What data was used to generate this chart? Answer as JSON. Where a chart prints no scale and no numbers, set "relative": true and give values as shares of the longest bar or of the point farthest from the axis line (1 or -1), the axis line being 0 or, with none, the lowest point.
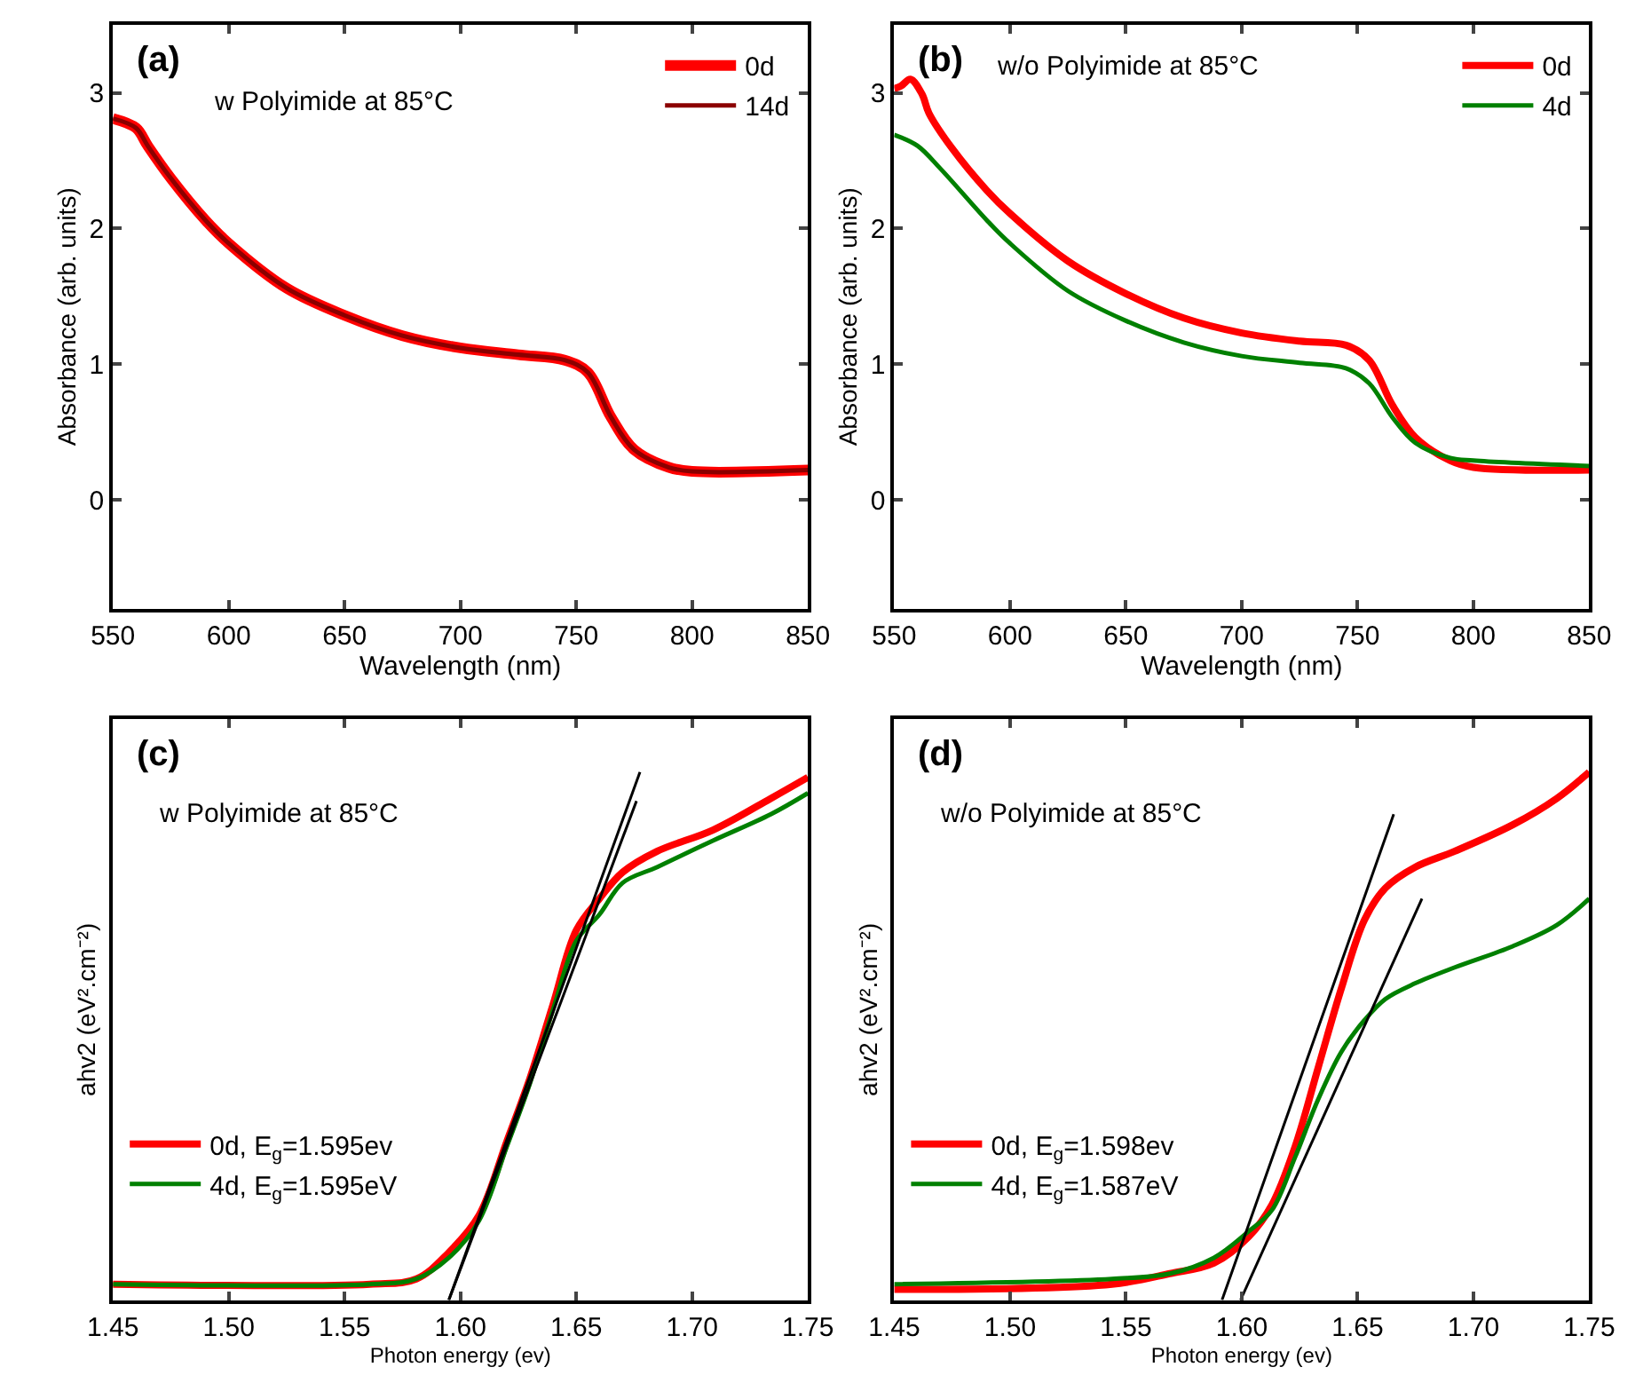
{
  "chart_data": [
    {
      "type": "line",
      "annotations": [
        "(a)",
        "w Polyimide at 85°C"
      ],
      "xlabel": "Wavelength (nm)",
      "ylabel": "Absorbance (arb. units)",
      "legend": "top right",
      "xlim": [
        550,
        850
      ],
      "xticks": [
        550,
        600,
        650,
        700,
        750,
        800,
        850
      ],
      "ylim": [
        -0.8,
        3.5
      ],
      "yticks": [
        0,
        1,
        2,
        3
      ],
      "x": [
        550,
        560,
        565,
        575,
        590,
        600,
        625,
        650,
        675,
        700,
        725,
        745,
        755,
        765,
        775,
        790,
        800,
        850
      ],
      "series": [
        {
          "name": "0d",
          "color": "#ff0000",
          "values": [
            2.81,
            2.74,
            2.61,
            2.37,
            2.06,
            1.89,
            1.56,
            1.36,
            1.21,
            1.12,
            1.07,
            1.03,
            0.94,
            0.61,
            0.37,
            0.24,
            0.21,
            0.22
          ]
        },
        {
          "name": "14d",
          "color": "#8b0000",
          "values": [
            2.81,
            2.74,
            2.61,
            2.37,
            2.06,
            1.89,
            1.56,
            1.36,
            1.21,
            1.12,
            1.07,
            1.03,
            0.94,
            0.61,
            0.37,
            0.24,
            0.21,
            0.22
          ]
        }
      ]
    },
    {
      "type": "line",
      "annotations": [
        "(b)",
        "w/o Polyimide at 85°C"
      ],
      "xlabel": "Wavelength (nm)",
      "ylabel": "Absorbance (arb. units)",
      "legend": "top right",
      "xlim": [
        550,
        850
      ],
      "xticks": [
        550,
        600,
        650,
        700,
        750,
        800,
        850
      ],
      "ylim": [
        -0.8,
        3.5
      ],
      "yticks": [
        0,
        1,
        2,
        3
      ],
      "series": [
        {
          "name": "0d",
          "color": "#ff0000",
          "x": [
            550,
            553,
            557,
            562,
            565,
            575,
            590,
            600,
            625,
            650,
            675,
            700,
            725,
            745,
            755,
            765,
            775,
            790,
            800,
            850
          ],
          "values": [
            3.03,
            3.05,
            3.1,
            2.99,
            2.85,
            2.59,
            2.28,
            2.11,
            1.76,
            1.52,
            1.34,
            1.23,
            1.17,
            1.14,
            1.03,
            0.7,
            0.46,
            0.29,
            0.24,
            0.22
          ]
        },
        {
          "name": "4d",
          "color": "#008000",
          "x": [
            550,
            560,
            570,
            590,
            600,
            625,
            650,
            675,
            700,
            725,
            745,
            755,
            765,
            775,
            790,
            800,
            850
          ],
          "values": [
            2.69,
            2.61,
            2.44,
            2.06,
            1.89,
            1.54,
            1.32,
            1.16,
            1.06,
            1.01,
            0.97,
            0.86,
            0.61,
            0.42,
            0.31,
            0.29,
            0.25
          ]
        }
      ]
    },
    {
      "type": "line",
      "annotations": [
        "(c)",
        "w Polyimide at 85°C"
      ],
      "xlabel": "Photon energy (ev)",
      "ylabel": "ahv2 (eV².cm⁻²)",
      "legend": "bottom left",
      "relative": true,
      "tick_labels": "x",
      "xlim": [
        1.45,
        1.75
      ],
      "xticks": [
        {
          "value": 1.45,
          "label": "1.45"
        },
        {
          "value": 1.5,
          "label": "1.50"
        },
        {
          "value": 1.55,
          "label": "1.55"
        },
        {
          "value": 1.6,
          "label": "1.60"
        },
        {
          "value": 1.65,
          "label": "1.65"
        },
        {
          "value": 1.7,
          "label": "1.70"
        },
        {
          "value": 1.75,
          "label": "1.75"
        }
      ],
      "x": [
        1.45,
        1.561,
        1.581,
        1.595,
        1.608,
        1.62,
        1.63,
        1.64,
        1.65,
        1.66,
        1.67,
        1.685,
        1.709,
        1.734,
        1.75
      ],
      "series": [
        {
          "name": "0d, E$_{g}$=1.595ev",
          "color": "#ff0000",
          "values": [
            0.03,
            0.03,
            0.04,
            0.09,
            0.16,
            0.3,
            0.42,
            0.56,
            0.7,
            0.76,
            0.81,
            0.85,
            0.89,
            0.95,
            0.99
          ]
        },
        {
          "name": "4d, E$_{g}$=1.595eV",
          "color": "#008000",
          "values": [
            0.03,
            0.03,
            0.04,
            0.08,
            0.15,
            0.29,
            0.41,
            0.55,
            0.68,
            0.73,
            0.79,
            0.82,
            0.87,
            0.92,
            0.96
          ]
        },
        {
          "color": "#000000",
          "x": [
            1.595,
            1.6775
          ],
          "values": [
            0,
            1.0
          ]
        },
        {
          "color": "#000000",
          "x": [
            1.595,
            1.676
          ],
          "values": [
            0,
            0.945
          ]
        }
      ]
    },
    {
      "type": "line",
      "annotations": [
        "(d)",
        "w/o Polyimide at 85°C"
      ],
      "xlabel": "Photon energy (ev)",
      "ylabel": "ahv2 (eV².cm⁻²)",
      "legend": "bottom left",
      "relative": true,
      "tick_labels": "x",
      "xlim": [
        1.45,
        1.75
      ],
      "xticks": [
        {
          "value": 1.45,
          "label": "1.45"
        },
        {
          "value": 1.5,
          "label": "1.50"
        },
        {
          "value": 1.55,
          "label": "1.55"
        },
        {
          "value": 1.6,
          "label": "1.60"
        },
        {
          "value": 1.65,
          "label": "1.65"
        },
        {
          "value": 1.7,
          "label": "1.70"
        },
        {
          "value": 1.75,
          "label": "1.75"
        }
      ],
      "x": [
        1.45,
        1.544,
        1.569,
        1.588,
        1.603,
        1.613,
        1.623,
        1.633,
        1.643,
        1.653,
        1.662,
        1.675,
        1.692,
        1.717,
        1.736,
        1.75
      ],
      "series": [
        {
          "name": "0d, E$_{g}$=1.598ev",
          "color": "#ff0000",
          "values": [
            0.02,
            0.03,
            0.05,
            0.07,
            0.12,
            0.18,
            0.29,
            0.44,
            0.59,
            0.72,
            0.78,
            0.82,
            0.85,
            0.9,
            0.95,
            1.0
          ]
        },
        {
          "name": "4d, E$_{g}$=1.587eV",
          "color": "#008000",
          "values": [
            0.03,
            0.04,
            0.05,
            0.08,
            0.13,
            0.17,
            0.27,
            0.38,
            0.47,
            0.53,
            0.57,
            0.6,
            0.63,
            0.67,
            0.71,
            0.76
          ]
        },
        {
          "color": "#000000",
          "x": [
            1.5915,
            1.6656
          ],
          "values": [
            0,
            0.92
          ]
        },
        {
          "color": "#000000",
          "x": [
            1.5995,
            1.6778
          ],
          "values": [
            0,
            0.76
          ]
        }
      ]
    }
  ]
}
